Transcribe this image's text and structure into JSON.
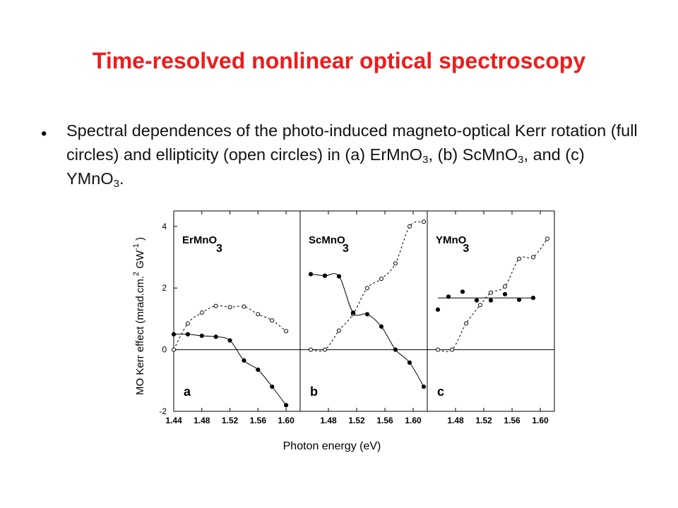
{
  "slide": {
    "title": "Time-resolved nonlinear optical spectroscopy",
    "bullet_mark": "•",
    "bullet": {
      "p1": "Spectral dependences of the photo-induced magneto-optical Kerr rotation (full circles) and ellipticity (open circles) in (a) ErMnO",
      "s1": "3",
      "p2": ", (b) ScMnO",
      "s2": "3",
      "p3": ", and (c) YMnO",
      "s3": "3",
      "p4": "."
    }
  },
  "chart_data": {
    "type": "scatter",
    "xlabel": "Photon energy  (eV)",
    "ylabel": "MO Kerr effect  (mrad.cm.",
    "ylabel_sup1": "2",
    "ylabel_mid": " GW",
    "ylabel_sup2": "-1",
    "ylabel_end": " )",
    "ylim": [
      -2,
      4.5
    ],
    "yticks": [
      "-2",
      "0",
      "2",
      "4"
    ],
    "grid": false,
    "panels": [
      {
        "letter": "a",
        "compound": "ErMnO",
        "subscript": "3",
        "xlim": [
          1.44,
          1.62
        ],
        "xticks": [
          "1.44",
          "1.48",
          "1.52",
          "1.56",
          "1.60"
        ],
        "rotation": [
          [
            1.44,
            0.5
          ],
          [
            1.46,
            0.5
          ],
          [
            1.48,
            0.45
          ],
          [
            1.5,
            0.42
          ],
          [
            1.52,
            0.3
          ],
          [
            1.54,
            -0.35
          ],
          [
            1.56,
            -0.65
          ],
          [
            1.58,
            -1.2
          ],
          [
            1.6,
            -1.8
          ]
        ],
        "ellipticity": [
          [
            1.44,
            0.0
          ],
          [
            1.46,
            0.85
          ],
          [
            1.48,
            1.2
          ],
          [
            1.5,
            1.42
          ],
          [
            1.52,
            1.38
          ],
          [
            1.54,
            1.4
          ],
          [
            1.56,
            1.15
          ],
          [
            1.58,
            0.95
          ],
          [
            1.6,
            0.6
          ]
        ],
        "rotation_fit": "curve",
        "ellipticity_fit": "curve"
      },
      {
        "letter": "b",
        "compound": "ScMnO",
        "subscript": "3",
        "xlim": [
          1.44,
          1.62
        ],
        "xticks": [
          "1.48",
          "1.52",
          "1.56",
          "1.60"
        ],
        "rotation": [
          [
            1.455,
            2.45
          ],
          [
            1.475,
            2.4
          ],
          [
            1.495,
            2.38
          ],
          [
            1.515,
            1.2
          ],
          [
            1.535,
            1.15
          ],
          [
            1.555,
            0.75
          ],
          [
            1.575,
            0.0
          ],
          [
            1.595,
            -0.42
          ],
          [
            1.615,
            -1.2
          ]
        ],
        "ellipticity": [
          [
            1.455,
            0.0
          ],
          [
            1.475,
            0.0
          ],
          [
            1.495,
            0.62
          ],
          [
            1.515,
            1.15
          ],
          [
            1.535,
            2.0
          ],
          [
            1.555,
            2.3
          ],
          [
            1.575,
            2.8
          ],
          [
            1.595,
            4.0
          ],
          [
            1.615,
            4.15
          ]
        ],
        "rotation_fit": "curve",
        "ellipticity_fit": "curve"
      },
      {
        "letter": "c",
        "compound": "YMnO",
        "subscript": "3",
        "xlim": [
          1.44,
          1.62
        ],
        "xticks": [
          "1.48",
          "1.52",
          "1.56",
          "1.60"
        ],
        "rotation": [
          [
            1.455,
            1.3
          ],
          [
            1.47,
            1.72
          ],
          [
            1.49,
            1.88
          ],
          [
            1.51,
            1.6
          ],
          [
            1.53,
            1.6
          ],
          [
            1.55,
            1.8
          ],
          [
            1.57,
            1.62
          ],
          [
            1.59,
            1.68
          ]
        ],
        "ellipticity": [
          [
            1.455,
            0.0
          ],
          [
            1.475,
            0.0
          ],
          [
            1.495,
            0.85
          ],
          [
            1.515,
            1.45
          ],
          [
            1.53,
            1.85
          ],
          [
            1.55,
            2.05
          ],
          [
            1.57,
            2.95
          ],
          [
            1.59,
            3.0
          ],
          [
            1.61,
            3.6
          ]
        ],
        "rotation_fit": "flat",
        "rotation_flat_value": 1.68,
        "ellipticity_fit": "curve"
      }
    ]
  }
}
